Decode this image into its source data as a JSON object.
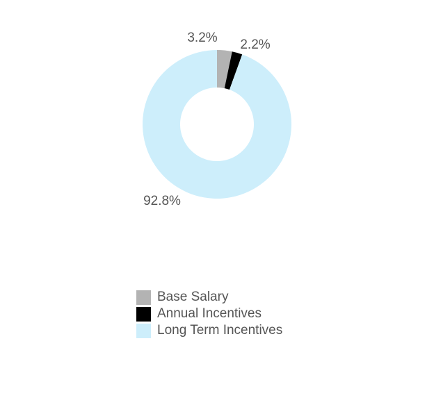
{
  "chart_data": {
    "type": "pie",
    "donut": true,
    "title": "",
    "legend_position": "bottom",
    "slices": [
      {
        "label": "Base Salary",
        "value": 3.2,
        "display": "3.2%",
        "color": "#b3b3b3"
      },
      {
        "label": "Annual Incentives",
        "value": 2.2,
        "display": "2.2%",
        "color": "#000000"
      },
      {
        "label": "Long Term Incentives",
        "value": 92.8,
        "display": "92.8%",
        "color": "#cdeefb"
      }
    ]
  }
}
